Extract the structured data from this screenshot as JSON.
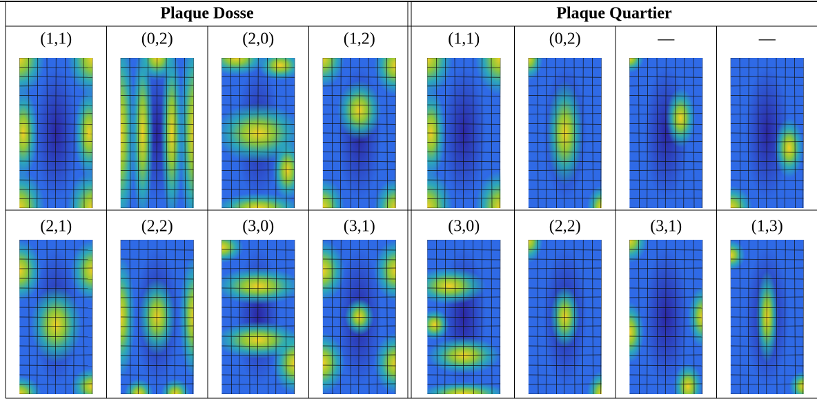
{
  "groups": [
    {
      "title": "Plaque Dosse",
      "rows": [
        [
          "(1,1)",
          "(0,2)",
          "(2,0)",
          "(1,2)"
        ],
        [
          "(2,1)",
          "(2,2)",
          "(3,0)",
          "(3,1)"
        ]
      ]
    },
    {
      "title": "Plaque Quartier",
      "rows": [
        [
          "(1,1)",
          "(0,2)",
          "—",
          "—"
        ],
        [
          "(3,0)",
          "(2,2)",
          "(3,1)",
          "(1,3)"
        ]
      ]
    }
  ]
}
